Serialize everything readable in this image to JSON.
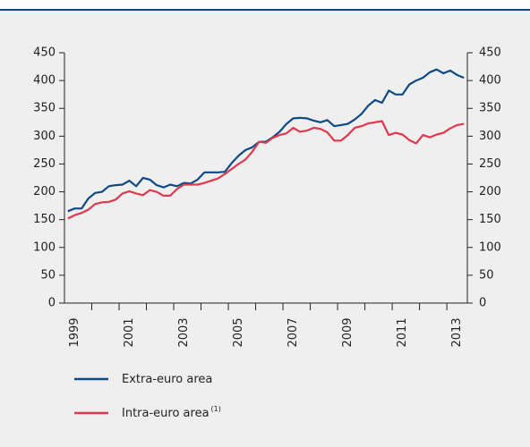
{
  "chart_data": {
    "type": "line",
    "x": [
      1999.125,
      1999.375,
      1999.625,
      1999.875,
      2000.125,
      2000.375,
      2000.625,
      2000.875,
      2001.125,
      2001.375,
      2001.625,
      2001.875,
      2002.125,
      2002.375,
      2002.625,
      2002.875,
      2003.125,
      2003.375,
      2003.625,
      2003.875,
      2004.125,
      2004.375,
      2004.625,
      2004.875,
      2005.125,
      2005.375,
      2005.625,
      2005.875,
      2006.125,
      2006.375,
      2006.625,
      2006.875,
      2007.125,
      2007.375,
      2007.625,
      2007.875,
      2008.125,
      2008.375,
      2008.625,
      2008.875,
      2009.125,
      2009.375,
      2009.625,
      2009.875,
      2010.125,
      2010.375,
      2010.625,
      2010.875,
      2011.125,
      2011.375,
      2011.625,
      2011.875,
      2012.125,
      2012.375,
      2012.625,
      2012.875,
      2013.125,
      2013.375,
      2013.625
    ],
    "series": [
      {
        "name": "Extra-euro area",
        "color": "#0e4a86",
        "values": [
          165,
          170,
          170,
          188,
          198,
          200,
          210,
          212,
          213,
          220,
          210,
          225,
          222,
          212,
          208,
          213,
          210,
          216,
          215,
          222,
          235,
          235,
          235,
          236,
          252,
          265,
          275,
          280,
          290,
          290,
          298,
          308,
          322,
          332,
          333,
          332,
          328,
          325,
          329,
          318,
          320,
          322,
          330,
          340,
          355,
          365,
          360,
          382,
          375,
          375,
          393,
          400,
          405,
          415,
          420,
          413,
          418,
          410,
          405
        ]
      },
      {
        "name": "Intra-euro area",
        "note": "(1)",
        "color": "#e0394f",
        "values": [
          152,
          158,
          162,
          168,
          178,
          181,
          182,
          186,
          197,
          201,
          197,
          194,
          203,
          200,
          193,
          193,
          205,
          213,
          213,
          213,
          216,
          220,
          224,
          232,
          241,
          250,
          258,
          272,
          290,
          288,
          297,
          302,
          305,
          315,
          308,
          310,
          315,
          313,
          307,
          292,
          292,
          302,
          315,
          318,
          323,
          325,
          327,
          302,
          306,
          303,
          293,
          287,
          302,
          298,
          303,
          306,
          314,
          320,
          322
        ]
      }
    ],
    "xlim": [
      1999,
      2013.75
    ],
    "xticks": [
      {
        "value": 1999.5,
        "label": "1999"
      },
      {
        "value": 2001.5,
        "label": "2001"
      },
      {
        "value": 2003.5,
        "label": "2003"
      },
      {
        "value": 2005.5,
        "label": "2005"
      },
      {
        "value": 2007.5,
        "label": "2007"
      },
      {
        "value": 2009.5,
        "label": "2009"
      },
      {
        "value": 2011.5,
        "label": "2011"
      },
      {
        "value": 2013.5,
        "label": "2013"
      }
    ],
    "xminorticks": [
      2000,
      2001,
      2002,
      2003,
      2004,
      2005,
      2006,
      2007,
      2008,
      2009,
      2010,
      2011,
      2012,
      2013
    ],
    "ylim": [
      0,
      450
    ],
    "yticks": [
      0,
      50,
      100,
      150,
      200,
      250,
      300,
      350,
      400,
      450
    ],
    "y2lim": [
      0,
      450
    ],
    "y2ticks": [
      0,
      50,
      100,
      150,
      200,
      250,
      300,
      350,
      400,
      450
    ]
  }
}
